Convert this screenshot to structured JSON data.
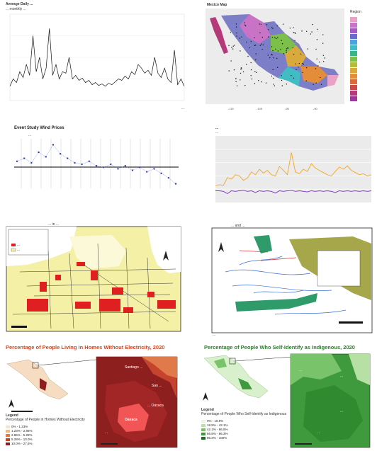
{
  "panel1": {
    "title": "Average Daily ...",
    "subtitle": "... monthly ...",
    "caption": "..."
  },
  "panel2": {
    "title": "Mexico Map",
    "legend_title": "Region",
    "legend_colors": [
      "#e8a2c8",
      "#c973c6",
      "#a15cc5",
      "#6c6ccf",
      "#4aa3d9",
      "#3fbcc4",
      "#3bb48a",
      "#7cc04b",
      "#b3bd3a",
      "#d9a93c",
      "#e38c3a",
      "#d96a3a",
      "#c94a4a",
      "#b53a7a",
      "#9a3a9e"
    ]
  },
  "panel3": {
    "title": "Event Study Wind Prices",
    "subtitle": "..."
  },
  "panel4": {
    "title": "...",
    "subtitle": "..."
  },
  "panel5": {
    "title": "... in ...",
    "legend_label_1": "...",
    "legend_label_2": "..."
  },
  "panel6": {
    "title": "... and ...",
    "caption": "..."
  },
  "panel7": {
    "title": "Percentage of People Living in Homes Without Electricity, 2020",
    "legend_title": "Legend",
    "legend_desc": "Percentage of People in Homes Without Electricity",
    "legend_items": [
      "0% - 1.23%",
      "1.23% - 2.86%",
      "2.86% - 5.28%",
      "5.28% - 10.0%",
      "10.0% - 27.6%"
    ],
    "legend_colors": [
      "#f7e3c8",
      "#f1b98a",
      "#e07a4b",
      "#c4442d",
      "#8e1f1f"
    ],
    "highlight_label": "Oaxaca",
    "labels": [
      "Santiago ...",
      "San ...",
      "... Oaxaca",
      "..."
    ]
  },
  "panel8": {
    "title": "Percentage of People Who Self-Identify as Indigenous, 2020",
    "legend_title": "Legend",
    "legend_desc": "Percentage of People Who Self-Identify as Indigenous",
    "legend_items": [
      "0% - 18.9%",
      "18.9% - 42.1%",
      "42.1% - 66.5%",
      "66.5% - 86.3%",
      "86.3% - 100%"
    ],
    "legend_colors": [
      "#e8f5e0",
      "#b7e0a4",
      "#79c46a",
      "#3f9a3e",
      "#1f6a25"
    ],
    "labels": [
      "...",
      "...",
      "...",
      "..."
    ]
  },
  "chart_data": [
    {
      "type": "line",
      "title": "",
      "series": [
        {
          "values": [
            2,
            3,
            2.5,
            4,
            3.2,
            5,
            3.5,
            9,
            4,
            6,
            3,
            4.5,
            10,
            3.5,
            5,
            3,
            4,
            3.8,
            6,
            3,
            3.5,
            2.8,
            3.1,
            2.5,
            2.8,
            2.2,
            2.5,
            2.1,
            2.3,
            2,
            2.4,
            2.2,
            2.6,
            3,
            2.8,
            3.4,
            3,
            4,
            3.6,
            5,
            4.5,
            3.8,
            4.2,
            3.5,
            6,
            3.8,
            3.2,
            4.5,
            3,
            2.5,
            7,
            2.2,
            3,
            2
          ]
        }
      ],
      "ylim": [
        0,
        12
      ]
    },
    {
      "type": "scatter",
      "title": "",
      "series": [
        {
          "values": [
            0.3,
            0.5,
            0.2,
            0.9,
            0.6,
            1.4,
            0.8,
            0.5,
            0.2,
            0.1,
            0.3,
            0.0,
            -0.1,
            0.1,
            -0.2,
            0.0,
            -0.3,
            -0.1,
            -0.4,
            -0.2,
            -0.5,
            -0.8,
            -1.2
          ]
        }
      ],
      "ylim": [
        -1.5,
        1.8
      ]
    },
    {
      "type": "line",
      "title": "",
      "series": [
        {
          "values": [
            10,
            12,
            11,
            25,
            22,
            30,
            28,
            20,
            24,
            35,
            30,
            40,
            33,
            38,
            30,
            28,
            45,
            38,
            30,
            70,
            35,
            32,
            40,
            36,
            50,
            42,
            38,
            34,
            30,
            28,
            36,
            44,
            40,
            46,
            38,
            34,
            30,
            32,
            28,
            30
          ]
        },
        {
          "values": [
            1,
            1,
            0,
            -4,
            1,
            0,
            1,
            2,
            0,
            1,
            -2,
            1,
            0,
            1,
            0,
            -3,
            1,
            0,
            1,
            2,
            0,
            1,
            0,
            -1,
            1,
            0,
            1,
            0,
            1,
            0,
            -2,
            1,
            0,
            1,
            0,
            1,
            0,
            1,
            0,
            1
          ]
        }
      ],
      "ylim": [
        -20,
        100
      ]
    }
  ]
}
